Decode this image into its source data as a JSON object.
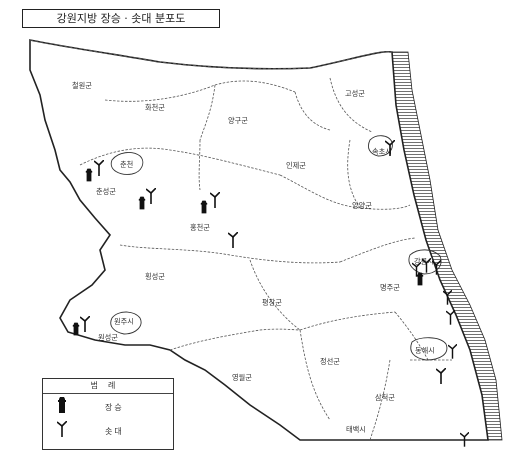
{
  "map": {
    "title": "강원지방 장승 · 솟대 분포도",
    "regions": [
      {
        "id": "cheorwon",
        "name": "철원군"
      },
      {
        "id": "hwacheon",
        "name": "화천군"
      },
      {
        "id": "yanggu",
        "name": "양구군"
      },
      {
        "id": "goseong",
        "name": "고성군"
      },
      {
        "id": "sokcho",
        "name": "속초시"
      },
      {
        "id": "inje",
        "name": "인제군"
      },
      {
        "id": "chuncheon-city",
        "name": "춘천"
      },
      {
        "id": "chunseong",
        "name": "춘성군"
      },
      {
        "id": "yangyang",
        "name": "양양군"
      },
      {
        "id": "hongcheon",
        "name": "홍천군"
      },
      {
        "id": "hoengseong",
        "name": "횡성군"
      },
      {
        "id": "gangneung",
        "name": "강릉시"
      },
      {
        "id": "myeongju",
        "name": "명주군"
      },
      {
        "id": "pyeongchang",
        "name": "평창군"
      },
      {
        "id": "wonju-city",
        "name": "원주시"
      },
      {
        "id": "wonseong",
        "name": "원성군"
      },
      {
        "id": "donghae",
        "name": "동해시"
      },
      {
        "id": "jeongseon",
        "name": "정선군"
      },
      {
        "id": "yeongwol",
        "name": "영월군"
      },
      {
        "id": "samcheok",
        "name": "삼척군"
      },
      {
        "id": "taebaek",
        "name": "태백시"
      }
    ]
  },
  "legend": {
    "title": "범례",
    "items": [
      {
        "icon": "jangseung-icon",
        "label": "장승"
      },
      {
        "icon": "sotdae-icon",
        "label": "솟대"
      }
    ]
  },
  "colors": {
    "ink": "#222222",
    "paper": "#ffffff"
  }
}
